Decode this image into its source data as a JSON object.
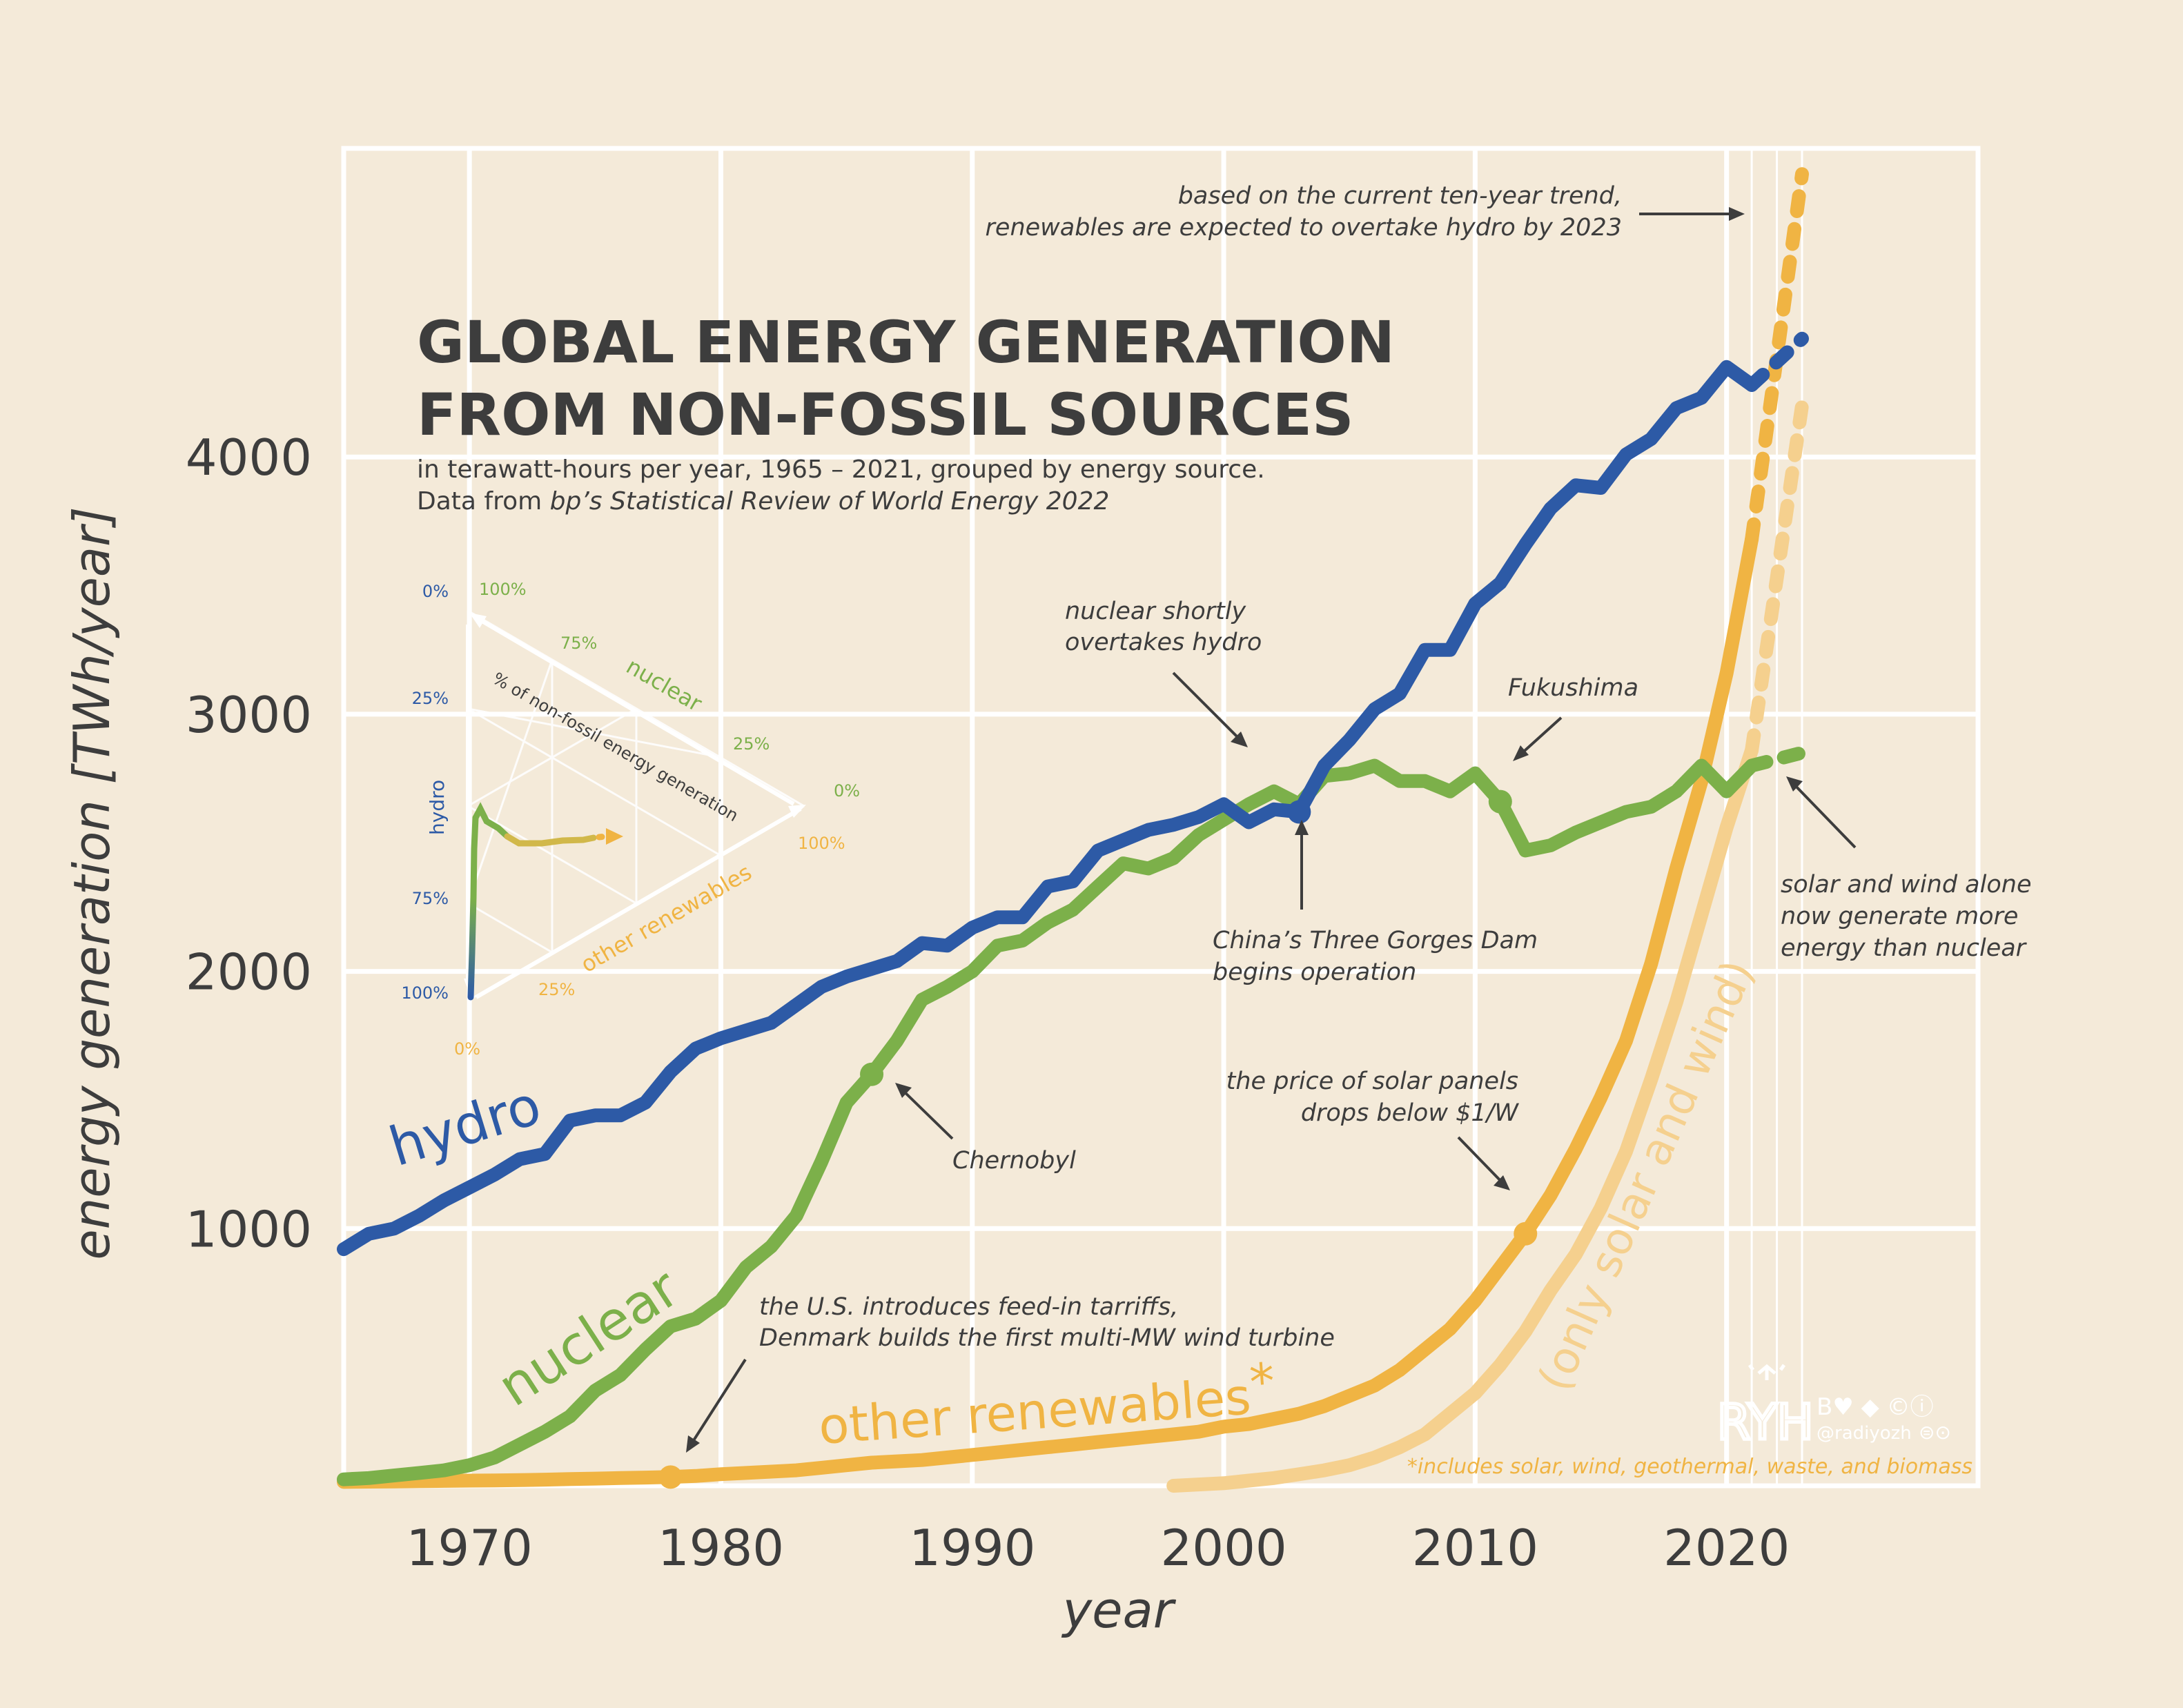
{
  "title_line1": "GLOBAL ENERGY GENERATION",
  "title_line2": "FROM NON-FOSSIL SOURCES",
  "subtitle_line1": "in terawatt-hours per year, 1965 – 2021, grouped by energy source.",
  "subtitle_line2_prefix": "Data from ",
  "subtitle_line2_italic": "bp’s Statistical Review of World Energy 2022",
  "footnote": "*includes solar, wind, geothermal, waste, and biomass",
  "credit": "@radiyozh",
  "logo_text": "RYH",
  "colors": {
    "hydro": "#2d5aa6",
    "nuclear": "#7cb04a",
    "other": "#f0b443",
    "solarwind": "#f5d08e",
    "text": "#3d3d3d",
    "background": "#f4ead9",
    "grid": "#ffffff"
  },
  "annotations": {
    "trend_1": "based on the current ten-year trend,",
    "trend_2": "renewables are expected to overtake hydro by 2023",
    "nuclear_overtakes_1": "nuclear shortly",
    "nuclear_overtakes_2": "overtakes hydro",
    "fukushima": "Fukushima",
    "three_gorges_1": "China’s Three Gorges Dam",
    "three_gorges_2": "begins operation",
    "solar_wind_1": "solar and wind alone",
    "solar_wind_2": "now generate more",
    "solar_wind_3": "energy than nuclear",
    "chernobyl": "Chernobyl",
    "solar_price_1": "the price of solar panels",
    "solar_price_2": "drops below $1/W",
    "us_denmark_1": "the U.S. introduces feed-in tarriffs,",
    "us_denmark_2": "Denmark builds the first multi-MW wind turbine"
  },
  "inline_labels": {
    "hydro": "hydro",
    "nuclear": "nuclear",
    "other": "other renewables",
    "other_star": "*",
    "solarwind": "(only solar and wind)"
  },
  "ternary": {
    "axis_title": "% of non-fossil energy generation",
    "hydro_label": "hydro",
    "nuclear_label": "nuclear",
    "other_label": "other renewables",
    "hydro_ticks": [
      "0%",
      "25%",
      "75%",
      "100%"
    ],
    "nuclear_ticks": [
      "100%",
      "75%",
      "25%",
      "0%"
    ],
    "other_ticks": [
      "100%",
      "25%",
      "0%"
    ]
  },
  "chart_data": {
    "type": "line",
    "xlabel": "year",
    "ylabel": "energy generation [TWh/year]",
    "xlim": [
      1965,
      2030
    ],
    "ylim": [
      0,
      5200
    ],
    "x_ticks": [
      1970,
      1980,
      1990,
      2000,
      2010,
      2020
    ],
    "y_ticks": [
      1000,
      2000,
      3000,
      4000
    ],
    "grid": true,
    "series": [
      {
        "name": "hydro",
        "x": [
          1965,
          1966,
          1967,
          1968,
          1969,
          1970,
          1971,
          1972,
          1973,
          1974,
          1975,
          1976,
          1977,
          1978,
          1979,
          1980,
          1981,
          1982,
          1983,
          1984,
          1985,
          1986,
          1987,
          1988,
          1989,
          1990,
          1991,
          1992,
          1993,
          1994,
          1995,
          1996,
          1997,
          1998,
          1999,
          2000,
          2001,
          2002,
          2003,
          2004,
          2005,
          2006,
          2007,
          2008,
          2009,
          2010,
          2011,
          2012,
          2013,
          2014,
          2015,
          2016,
          2017,
          2018,
          2019,
          2020,
          2021
        ],
        "values": [
          920,
          980,
          1000,
          1050,
          1110,
          1160,
          1210,
          1270,
          1290,
          1420,
          1440,
          1440,
          1490,
          1610,
          1700,
          1740,
          1770,
          1800,
          1870,
          1940,
          1980,
          2010,
          2040,
          2110,
          2100,
          2170,
          2210,
          2210,
          2330,
          2350,
          2470,
          2510,
          2550,
          2570,
          2600,
          2650,
          2580,
          2630,
          2620,
          2800,
          2900,
          3020,
          3080,
          3250,
          3250,
          3430,
          3510,
          3660,
          3800,
          3890,
          3880,
          4010,
          4070,
          4190,
          4230,
          4350,
          4280
        ]
      },
      {
        "name": "nuclear",
        "x": [
          1965,
          1966,
          1967,
          1968,
          1969,
          1970,
          1971,
          1972,
          1973,
          1974,
          1975,
          1976,
          1977,
          1978,
          1979,
          1980,
          1981,
          1982,
          1983,
          1984,
          1985,
          1986,
          1987,
          1988,
          1989,
          1990,
          1991,
          1992,
          1993,
          1994,
          1995,
          1996,
          1997,
          1998,
          1999,
          2000,
          2001,
          2002,
          2003,
          2004,
          2005,
          2006,
          2007,
          2008,
          2009,
          2010,
          2011,
          2012,
          2013,
          2014,
          2015,
          2016,
          2017,
          2018,
          2019,
          2020,
          2021
        ],
        "values": [
          25,
          30,
          40,
          50,
          60,
          80,
          110,
          160,
          210,
          270,
          370,
          430,
          530,
          620,
          650,
          720,
          850,
          930,
          1050,
          1260,
          1490,
          1600,
          1730,
          1890,
          1940,
          2000,
          2100,
          2120,
          2190,
          2240,
          2330,
          2420,
          2400,
          2440,
          2530,
          2590,
          2650,
          2700,
          2650,
          2760,
          2770,
          2800,
          2740,
          2740,
          2700,
          2770,
          2660,
          2470,
          2490,
          2540,
          2580,
          2620,
          2640,
          2700,
          2800,
          2700,
          2800
        ]
      },
      {
        "name": "other renewables*",
        "x": [
          1965,
          1966,
          1967,
          1968,
          1969,
          1970,
          1971,
          1972,
          1973,
          1974,
          1975,
          1976,
          1977,
          1978,
          1979,
          1980,
          1981,
          1982,
          1983,
          1984,
          1985,
          1986,
          1987,
          1988,
          1989,
          1990,
          1991,
          1992,
          1993,
          1994,
          1995,
          1996,
          1997,
          1998,
          1999,
          2000,
          2001,
          2002,
          2003,
          2004,
          2005,
          2006,
          2007,
          2008,
          2009,
          2010,
          2011,
          2012,
          2013,
          2014,
          2015,
          2016,
          2017,
          2018,
          2019,
          2020,
          2021
        ],
        "values": [
          15,
          16,
          17,
          18,
          19,
          20,
          21,
          22,
          24,
          26,
          28,
          30,
          32,
          34,
          38,
          45,
          50,
          55,
          60,
          70,
          80,
          90,
          95,
          100,
          110,
          120,
          130,
          140,
          150,
          160,
          170,
          180,
          190,
          200,
          210,
          230,
          240,
          260,
          280,
          310,
          350,
          390,
          450,
          530,
          610,
          720,
          850,
          980,
          1130,
          1310,
          1510,
          1730,
          2030,
          2400,
          2740,
          3160,
          3680
        ]
      },
      {
        "name": "only solar and wind",
        "x": [
          1998,
          1999,
          2000,
          2001,
          2002,
          2003,
          2004,
          2005,
          2006,
          2007,
          2008,
          2009,
          2010,
          2011,
          2012,
          2013,
          2014,
          2015,
          2016,
          2017,
          2018,
          2019,
          2020,
          2021
        ],
        "values": [
          0,
          5,
          10,
          20,
          30,
          45,
          60,
          80,
          110,
          150,
          200,
          280,
          360,
          470,
          600,
          760,
          900,
          1080,
          1300,
          1580,
          1880,
          2220,
          2560,
          2860
        ]
      }
    ],
    "projection": {
      "years": [
        2021,
        2023
      ],
      "hydro": [
        4280,
        4460
      ],
      "nuclear": [
        2800,
        2850
      ],
      "other": [
        3680,
        5100
      ],
      "solarwind": [
        2860,
        4200
      ]
    },
    "events": [
      {
        "label": "Chernobyl",
        "x": 1986,
        "series": "nuclear"
      },
      {
        "label": "Fukushima",
        "x": 2011,
        "series": "nuclear"
      },
      {
        "label": "China’s Three Gorges Dam begins operation",
        "x": 2003,
        "series": "hydro"
      },
      {
        "label": "the price of solar panels drops below $1/W",
        "x": 2012,
        "series": "other renewables*"
      },
      {
        "label": "the U.S. introduces feed-in tarriffs, Denmark builds the first multi-MW wind turbine",
        "x": 1978,
        "series": "other renewables*"
      }
    ]
  }
}
